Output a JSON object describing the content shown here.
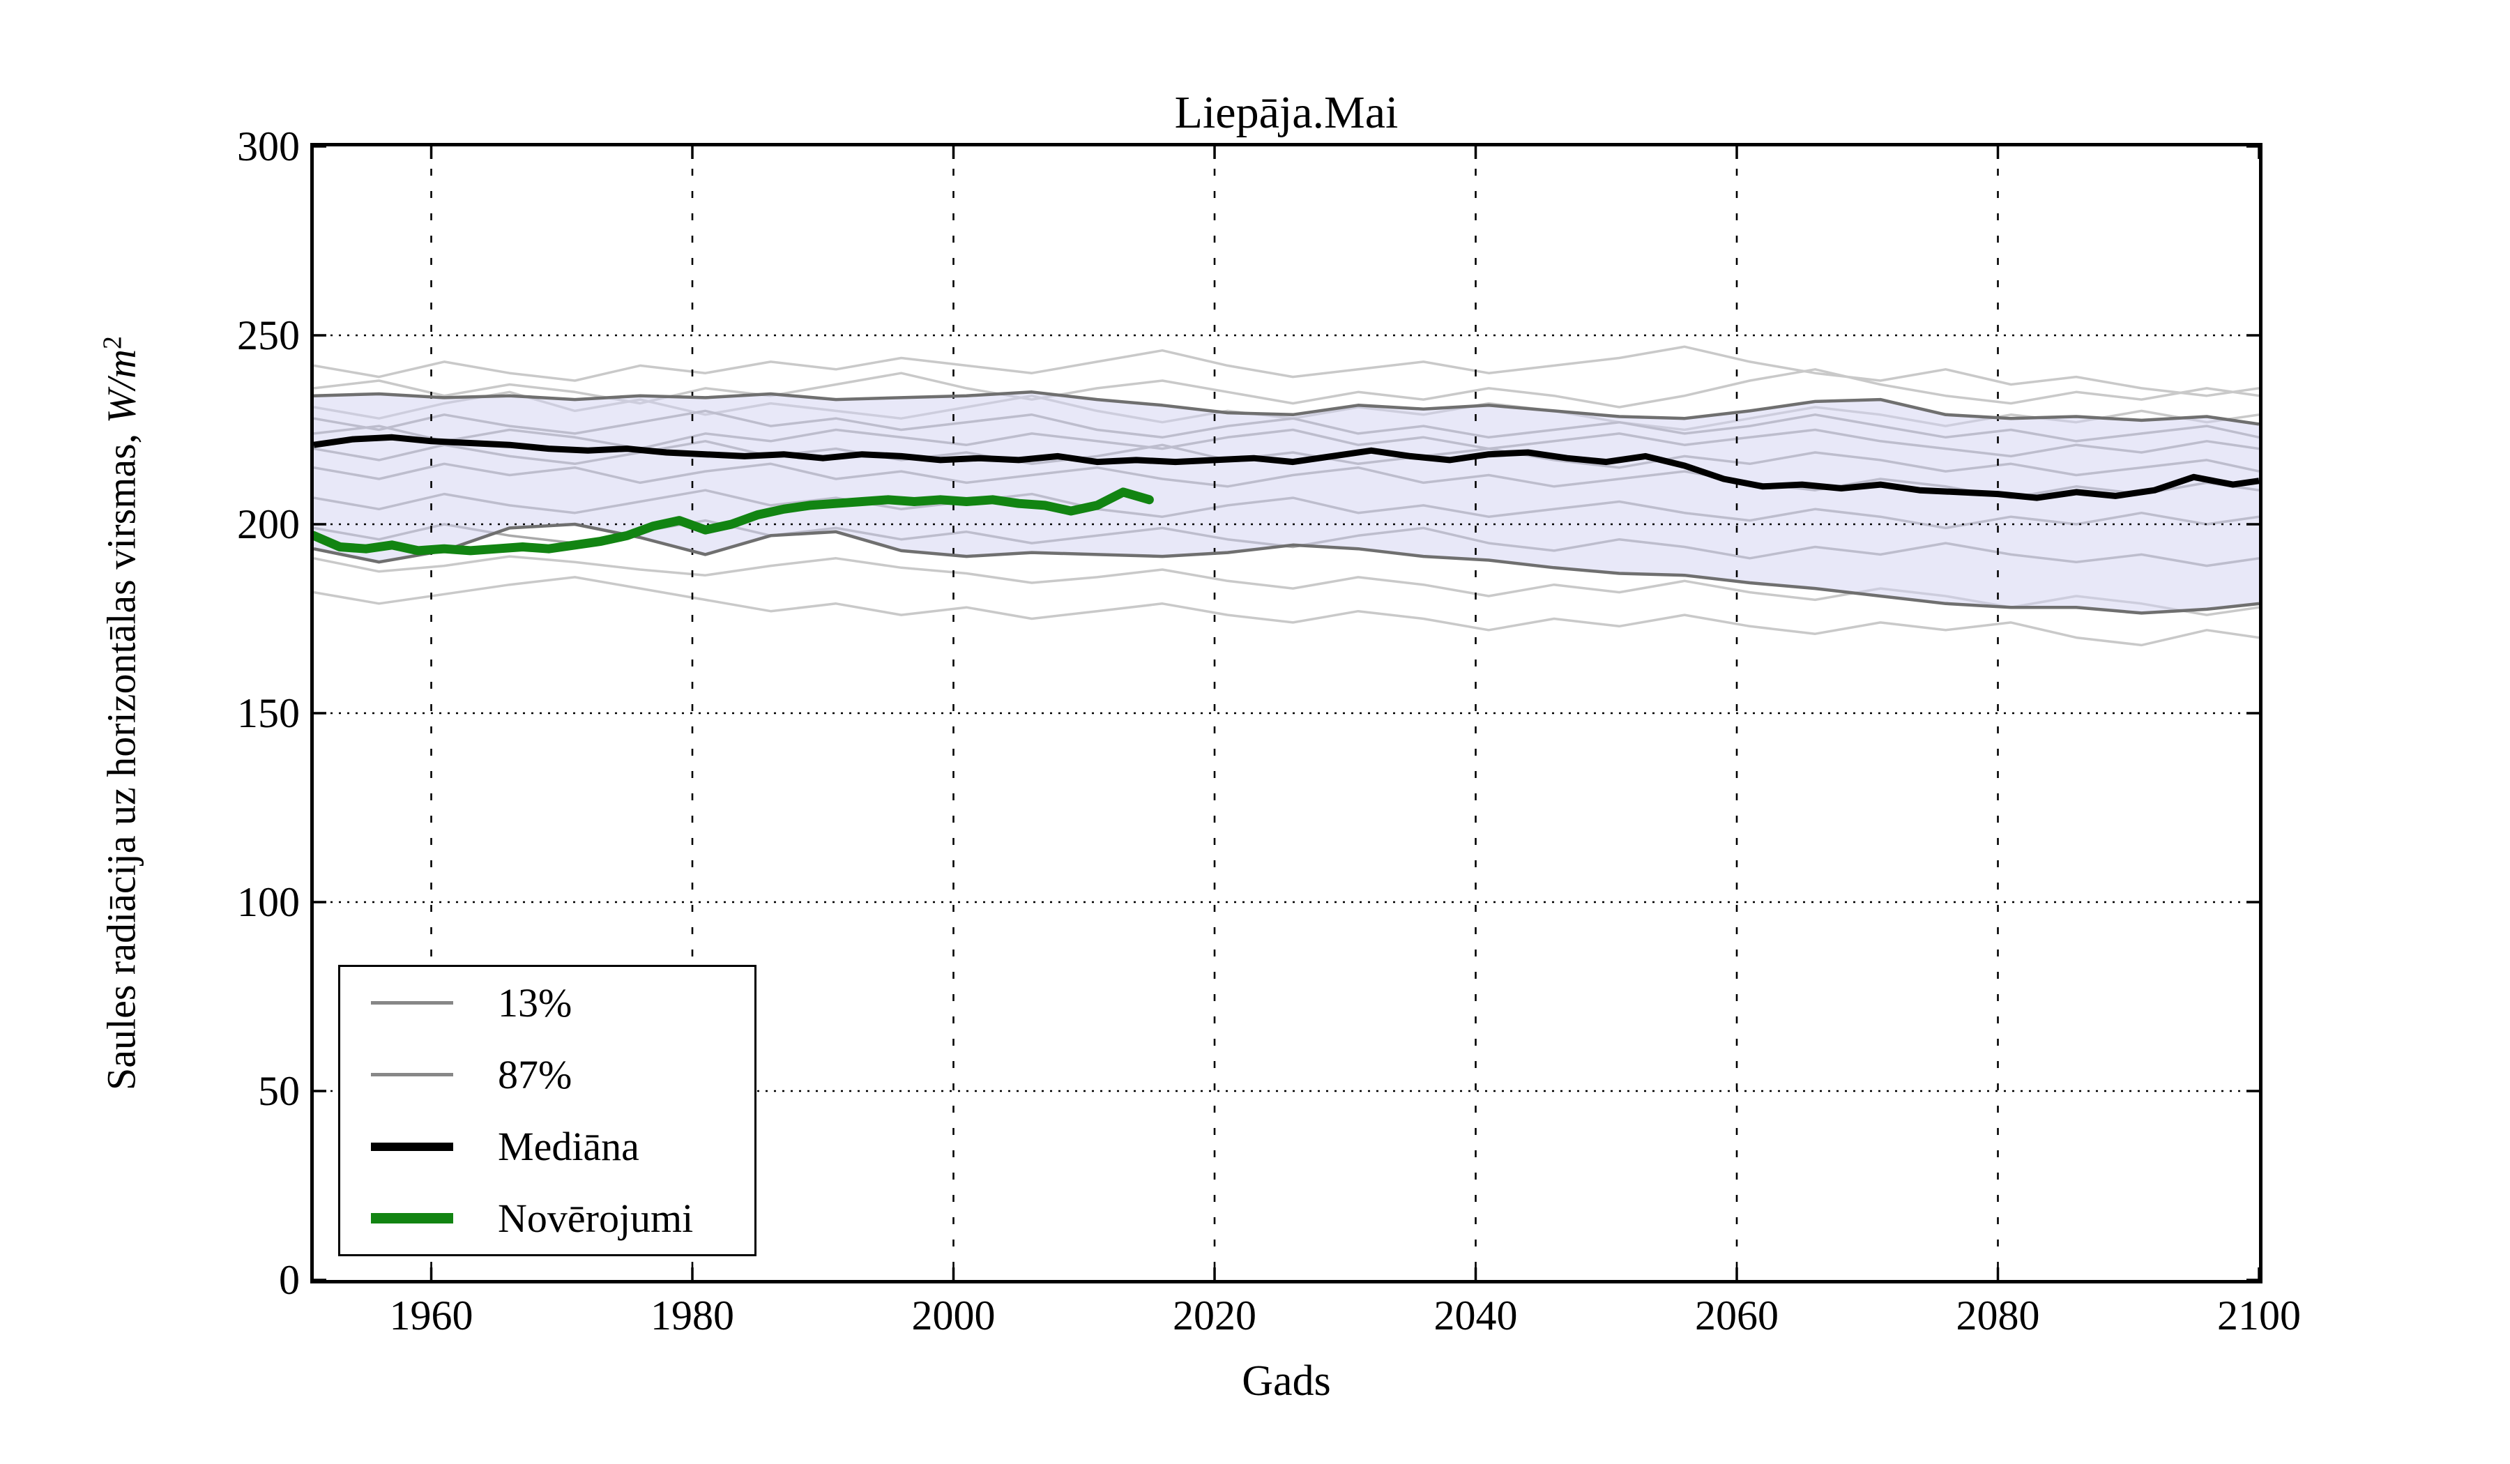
{
  "chart_data": {
    "type": "line",
    "title": "Liepāja.Mai",
    "xlabel": "Gads",
    "ylabel_prefix": "Saules radiācija uz horizontālas virsmas, ",
    "ylabel_math": "W/m",
    "ylabel_sup": "2",
    "xlim": [
      1951,
      2100
    ],
    "ylim": [
      0,
      300
    ],
    "xticks": [
      1960,
      1980,
      2000,
      2020,
      2040,
      2060,
      2080,
      2100
    ],
    "yticks": [
      0,
      50,
      100,
      150,
      200,
      250,
      300
    ],
    "grid": true,
    "grid_style": "dotted",
    "legend": {
      "position": "lower left",
      "items": [
        {
          "label": "13%",
          "color": "#878787",
          "height": 5
        },
        {
          "label": "87%",
          "color": "#878787",
          "height": 5
        },
        {
          "label": "Mediāna",
          "color": "#000000",
          "height": 12
        },
        {
          "label": "Novērojumi",
          "color": "#128412",
          "height": 15
        }
      ]
    },
    "colors": {
      "median": "#000000",
      "observations": "#128412",
      "band_fill": "rgba(210,210,242,0.5)",
      "band_edge": "#6f6f6f",
      "ensemble_light": "#c9c9c9",
      "ensemble_mid": "#a9a9a9",
      "grid": "#000000"
    },
    "series": {
      "median": {
        "name": "Mediāna",
        "x": [
          1951,
          1954,
          1957,
          1960,
          1963,
          1966,
          1969,
          1972,
          1975,
          1978,
          1981,
          1984,
          1987,
          1990,
          1993,
          1996,
          1999,
          2002,
          2005,
          2008,
          2011,
          2014,
          2017,
          2020,
          2023,
          2026,
          2029,
          2032,
          2035,
          2038,
          2041,
          2044,
          2047,
          2050,
          2053,
          2056,
          2059,
          2062,
          2065,
          2068,
          2071,
          2074,
          2077,
          2080,
          2083,
          2086,
          2089,
          2092,
          2095,
          2098,
          2100
        ],
        "y": [
          221,
          222.5,
          223,
          222,
          221.5,
          221,
          220,
          219.5,
          220,
          219,
          218.5,
          218,
          218.5,
          217.5,
          218.5,
          218,
          217,
          217.5,
          217,
          218,
          216.5,
          217,
          216.5,
          217,
          217.5,
          216.5,
          218,
          219.5,
          218,
          217,
          218.5,
          219,
          217.5,
          216.5,
          218,
          215.5,
          212,
          210,
          210.5,
          209.5,
          210.5,
          209,
          208.5,
          208,
          207,
          208.5,
          207.5,
          209,
          212.5,
          210.5,
          211.5
        ]
      },
      "observations": {
        "name": "Novērojumi",
        "x": [
          1951,
          1953,
          1955,
          1957,
          1959,
          1961,
          1963,
          1965,
          1967,
          1969,
          1971,
          1973,
          1975,
          1977,
          1979,
          1981,
          1983,
          1985,
          1987,
          1989,
          1991,
          1993,
          1995,
          1997,
          1999,
          2001,
          2003,
          2005,
          2007,
          2009,
          2011,
          2013,
          2015
        ],
        "y": [
          197,
          194,
          193.5,
          194.5,
          193,
          193.5,
          193,
          193.5,
          194,
          193.5,
          194.5,
          195.5,
          197,
          199.5,
          201,
          198.5,
          200,
          202.5,
          204,
          205,
          205.5,
          206,
          206.5,
          206,
          206.5,
          206,
          206.5,
          205.5,
          205,
          203.5,
          205,
          208.5,
          206.5
        ]
      },
      "band_x": [
        1951,
        1956,
        1961,
        1966,
        1971,
        1976,
        1981,
        1986,
        1991,
        1996,
        2001,
        2006,
        2011,
        2016,
        2021,
        2026,
        2031,
        2036,
        2041,
        2046,
        2051,
        2056,
        2061,
        2066,
        2071,
        2076,
        2081,
        2086,
        2091,
        2096,
        2100
      ],
      "p87": {
        "name": "87%",
        "y": [
          234,
          234.5,
          233.5,
          234,
          233,
          234,
          233.5,
          234.5,
          233,
          233.5,
          234,
          235,
          233,
          231.5,
          229.5,
          229,
          231.5,
          230.5,
          231.5,
          230,
          228.5,
          228,
          230,
          232.5,
          233,
          229,
          228,
          228.5,
          227.5,
          228.5,
          226.5
        ]
      },
      "p13": {
        "name": "13%",
        "y": [
          193.5,
          190,
          193,
          199,
          200,
          196.5,
          192,
          197,
          198,
          193,
          191.5,
          192.5,
          192,
          191.5,
          192.5,
          194.5,
          193.5,
          191.5,
          190.5,
          188.5,
          187,
          186.5,
          184.5,
          183,
          181,
          179,
          178,
          178,
          176.5,
          177.5,
          179
        ]
      },
      "ensemble_light": [
        [
          242,
          239,
          243,
          240,
          238,
          242,
          240,
          243,
          241,
          244,
          242,
          240,
          243,
          246,
          242,
          239,
          241,
          243,
          240,
          242,
          244,
          247,
          243,
          240,
          238,
          241,
          237,
          239,
          236,
          234,
          236
        ],
        [
          236,
          238,
          234,
          237,
          235,
          232,
          236,
          234,
          237,
          240,
          236,
          233,
          236,
          238,
          235,
          232,
          235,
          233,
          236,
          234,
          231,
          234,
          238,
          241,
          237,
          234,
          232,
          235,
          233,
          236,
          234
        ],
        [
          231,
          228,
          232,
          235,
          230,
          233,
          229,
          232,
          230,
          228,
          231,
          234,
          230,
          227,
          230,
          228,
          231,
          229,
          232,
          230,
          227,
          225,
          228,
          231,
          229,
          226,
          229,
          227,
          230,
          227,
          229
        ],
        [
          191,
          187.5,
          189,
          191.5,
          190,
          188,
          186.5,
          189,
          191,
          188.5,
          187,
          184.5,
          186,
          188,
          185,
          183,
          186,
          184,
          181,
          184,
          182,
          185,
          182,
          180,
          183,
          181,
          178,
          181,
          179,
          176,
          178
        ],
        [
          182,
          179,
          181.5,
          184,
          186,
          183,
          180,
          177,
          179,
          176,
          178,
          175,
          177,
          179,
          176,
          174,
          177,
          175,
          172,
          175,
          173,
          176,
          173,
          171,
          174,
          172,
          174,
          170,
          168,
          172,
          170
        ]
      ],
      "ensemble_mid": [
        [
          228,
          225,
          229,
          226,
          224,
          227,
          230,
          226,
          228,
          225,
          227,
          229,
          225,
          223,
          226,
          228,
          224,
          226,
          223,
          225,
          227,
          224,
          226,
          229,
          226,
          223,
          225,
          222,
          224,
          226,
          223
        ],
        [
          224,
          226,
          222,
          225,
          223,
          220,
          224,
          222,
          225,
          223,
          221,
          224,
          222,
          220,
          223,
          225,
          221,
          223,
          220,
          222,
          224,
          221,
          223,
          225,
          222,
          220,
          218,
          221,
          219,
          222,
          220
        ],
        [
          220,
          217,
          221,
          218,
          216,
          219,
          222,
          218,
          220,
          217,
          219,
          216,
          218,
          221,
          217,
          219,
          216,
          218,
          220,
          217,
          215,
          218,
          216,
          219,
          217,
          214,
          216,
          213,
          215,
          217,
          214
        ],
        [
          215,
          212,
          216,
          213,
          215,
          211,
          214,
          216,
          212,
          214,
          211,
          213,
          215,
          212,
          210,
          213,
          215,
          211,
          213,
          210,
          212,
          214,
          211,
          209,
          212,
          210,
          207,
          210,
          208,
          211,
          209
        ],
        [
          207,
          204,
          208,
          205,
          203,
          206,
          209,
          205,
          207,
          204,
          206,
          208,
          204,
          202,
          205,
          207,
          203,
          205,
          202,
          204,
          206,
          203,
          201,
          204,
          202,
          199,
          202,
          200,
          203,
          200,
          202
        ],
        [
          199,
          196,
          200,
          197,
          195,
          198,
          201,
          197,
          199,
          196,
          198,
          195,
          197,
          199,
          196,
          194,
          197,
          199,
          195,
          193,
          196,
          194,
          191,
          194,
          192,
          195,
          192,
          190,
          192,
          189,
          191
        ]
      ]
    }
  }
}
